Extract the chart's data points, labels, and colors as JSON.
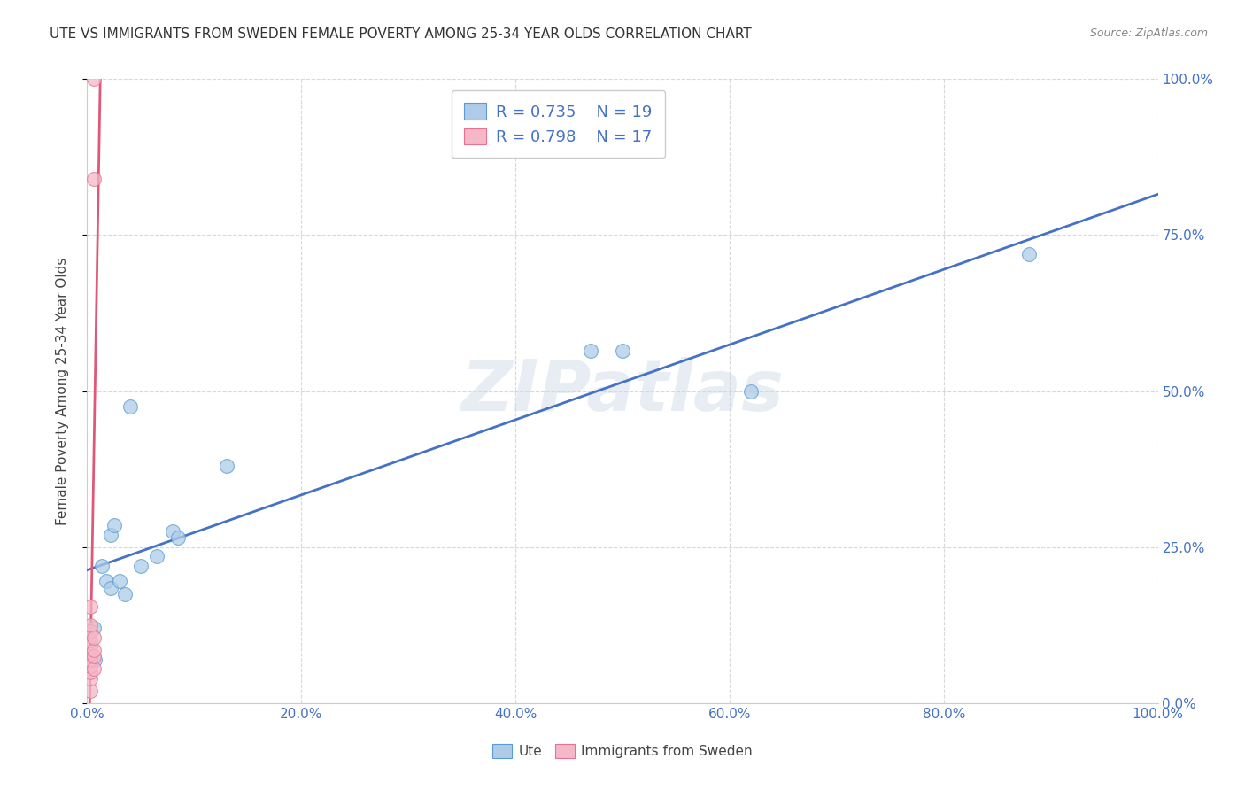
{
  "title": "UTE VS IMMIGRANTS FROM SWEDEN FEMALE POVERTY AMONG 25-34 YEAR OLDS CORRELATION CHART",
  "source": "Source: ZipAtlas.com",
  "ylabel": "Female Poverty Among 25-34 Year Olds",
  "x_tick_labels": [
    "0.0%",
    "20.0%",
    "40.0%",
    "60.0%",
    "80.0%",
    "100.0%"
  ],
  "x_tick_values": [
    0.0,
    0.2,
    0.4,
    0.6,
    0.8,
    1.0
  ],
  "y_tick_labels": [
    "0.0%",
    "25.0%",
    "50.0%",
    "75.0%",
    "100.0%"
  ],
  "y_tick_values": [
    0.0,
    0.25,
    0.5,
    0.75,
    1.0
  ],
  "xlim": [
    0.0,
    1.0
  ],
  "ylim": [
    0.0,
    1.0
  ],
  "ute_scatter_color": "#aecce8",
  "ute_edge_color": "#5b9bd5",
  "ute_line_color": "#4472c4",
  "sweden_scatter_color": "#f4b8c8",
  "sweden_edge_color": "#e87090",
  "sweden_line_color": "#e05878",
  "ute_R": "0.735",
  "ute_N": "19",
  "sweden_R": "0.798",
  "sweden_N": "17",
  "watermark": "ZIPatlas",
  "ute_x": [
    0.006,
    0.007,
    0.014,
    0.018,
    0.022,
    0.022,
    0.025,
    0.03,
    0.035,
    0.04,
    0.08,
    0.085,
    0.13,
    0.47,
    0.5,
    0.62,
    0.88,
    0.065,
    0.05
  ],
  "ute_y": [
    0.12,
    0.07,
    0.22,
    0.195,
    0.185,
    0.27,
    0.285,
    0.195,
    0.175,
    0.475,
    0.275,
    0.265,
    0.38,
    0.565,
    0.565,
    0.5,
    0.72,
    0.235,
    0.22
  ],
  "sweden_x": [
    0.003,
    0.003,
    0.003,
    0.003,
    0.003,
    0.003,
    0.003,
    0.003,
    0.003,
    0.003,
    0.003,
    0.006,
    0.006,
    0.006,
    0.006,
    0.0065,
    0.0065
  ],
  "sweden_y": [
    0.02,
    0.04,
    0.05,
    0.06,
    0.07,
    0.08,
    0.09,
    0.1,
    0.115,
    0.125,
    0.155,
    0.055,
    0.075,
    0.085,
    0.105,
    0.84,
    1.0
  ],
  "background_color": "#ffffff",
  "grid_color": "#d8d8d8",
  "title_color": "#333333",
  "axis_label_color": "#4472c4",
  "legend_value_color": "#4472c4"
}
